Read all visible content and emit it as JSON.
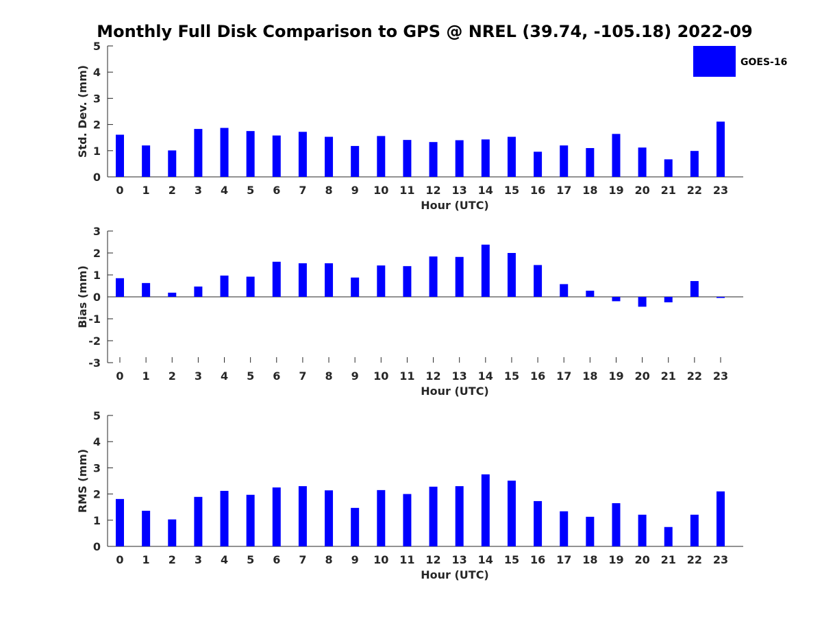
{
  "title": "Monthly Full Disk Comparison to GPS @ NREL (39.74, -105.18) 2022-09",
  "colors": {
    "bar": "#0000ff",
    "axis": "#262626",
    "background": "#ffffff"
  },
  "chart_data": [
    {
      "type": "bar",
      "xlabel": "Hour (UTC)",
      "ylabel": "Std. Dev. (mm)",
      "categories": [
        "0",
        "1",
        "2",
        "3",
        "4",
        "5",
        "6",
        "7",
        "8",
        "9",
        "10",
        "11",
        "12",
        "13",
        "14",
        "15",
        "16",
        "17",
        "18",
        "19",
        "20",
        "21",
        "22",
        "23"
      ],
      "ylim": [
        0,
        5
      ],
      "yticks": [
        "0",
        "1",
        "2",
        "3",
        "4",
        "5"
      ],
      "series": [
        {
          "name": "GOES-16",
          "values": [
            1.61,
            1.2,
            1.01,
            1.83,
            1.87,
            1.75,
            1.58,
            1.72,
            1.53,
            1.18,
            1.56,
            1.41,
            1.33,
            1.4,
            1.43,
            1.53,
            0.96,
            1.2,
            1.1,
            1.64,
            1.12,
            0.67,
            0.99,
            2.11
          ]
        }
      ],
      "legend": {
        "position": "top-right",
        "entries": [
          "GOES-16"
        ]
      }
    },
    {
      "type": "bar",
      "xlabel": "Hour (UTC)",
      "ylabel": "Bias (mm)",
      "categories": [
        "0",
        "1",
        "2",
        "3",
        "4",
        "5",
        "6",
        "7",
        "8",
        "9",
        "10",
        "11",
        "12",
        "13",
        "14",
        "15",
        "16",
        "17",
        "18",
        "19",
        "20",
        "21",
        "22",
        "23"
      ],
      "ylim": [
        -3,
        3
      ],
      "yticks": [
        "-3",
        "-2",
        "-1",
        "0",
        "1",
        "2",
        "3"
      ],
      "series": [
        {
          "name": "GOES-16",
          "values": [
            0.85,
            0.63,
            0.19,
            0.47,
            0.97,
            0.92,
            1.6,
            1.53,
            1.53,
            0.88,
            1.43,
            1.4,
            1.84,
            1.82,
            2.38,
            2.0,
            1.45,
            0.58,
            0.28,
            -0.2,
            -0.45,
            -0.25,
            0.72,
            -0.05
          ]
        }
      ]
    },
    {
      "type": "bar",
      "xlabel": "Hour (UTC)",
      "ylabel": "RMS (mm)",
      "categories": [
        "0",
        "1",
        "2",
        "3",
        "4",
        "5",
        "6",
        "7",
        "8",
        "9",
        "10",
        "11",
        "12",
        "13",
        "14",
        "15",
        "16",
        "17",
        "18",
        "19",
        "20",
        "21",
        "22",
        "23"
      ],
      "ylim": [
        0,
        5
      ],
      "yticks": [
        "0",
        "1",
        "2",
        "3",
        "4",
        "5"
      ],
      "series": [
        {
          "name": "GOES-16",
          "values": [
            1.81,
            1.36,
            1.03,
            1.89,
            2.12,
            1.97,
            2.25,
            2.3,
            2.14,
            1.47,
            2.15,
            2.0,
            2.28,
            2.3,
            2.75,
            2.51,
            1.73,
            1.34,
            1.13,
            1.65,
            1.21,
            0.74,
            1.21,
            2.1
          ]
        }
      ]
    }
  ]
}
